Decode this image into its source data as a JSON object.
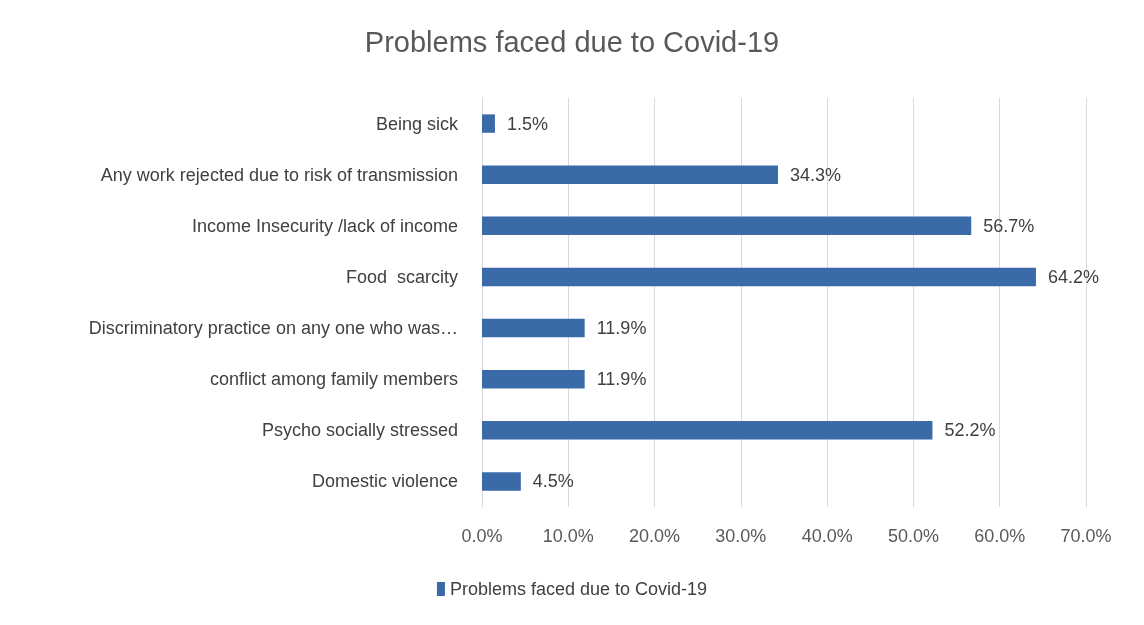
{
  "chart_data": {
    "type": "bar",
    "orientation": "horizontal",
    "title": "Problems faced due to Covid-19",
    "categories": [
      "Being sick",
      "Any work rejected due to risk of transmission",
      "Income Insecurity /lack of income",
      "Food  scarcity",
      "Discriminatory practice on any one who was…",
      "conflict among family members",
      "Psycho socially stressed",
      "Domestic violence"
    ],
    "series": [
      {
        "name": "Problems faced due to Covid-19",
        "color": "#3a6aa8",
        "values": [
          1.5,
          34.3,
          56.7,
          64.2,
          11.9,
          11.9,
          52.2,
          4.5
        ],
        "value_labels": [
          "1.5%",
          "34.3%",
          "56.7%",
          "64.2%",
          "11.9%",
          "11.9%",
          "52.2%",
          "4.5%"
        ]
      }
    ],
    "xlim": [
      0,
      70
    ],
    "xticks": [
      {
        "value": 0,
        "label": "0.0%"
      },
      {
        "value": 10,
        "label": "10.0%"
      },
      {
        "value": 20,
        "label": "20.0%"
      },
      {
        "value": 30,
        "label": "30.0%"
      },
      {
        "value": 40,
        "label": "40.0%"
      },
      {
        "value": 50,
        "label": "50.0%"
      },
      {
        "value": 60,
        "label": "60.0%"
      },
      {
        "value": 70,
        "label": "70.0%"
      }
    ],
    "grid": "x",
    "legend": "bottom"
  }
}
